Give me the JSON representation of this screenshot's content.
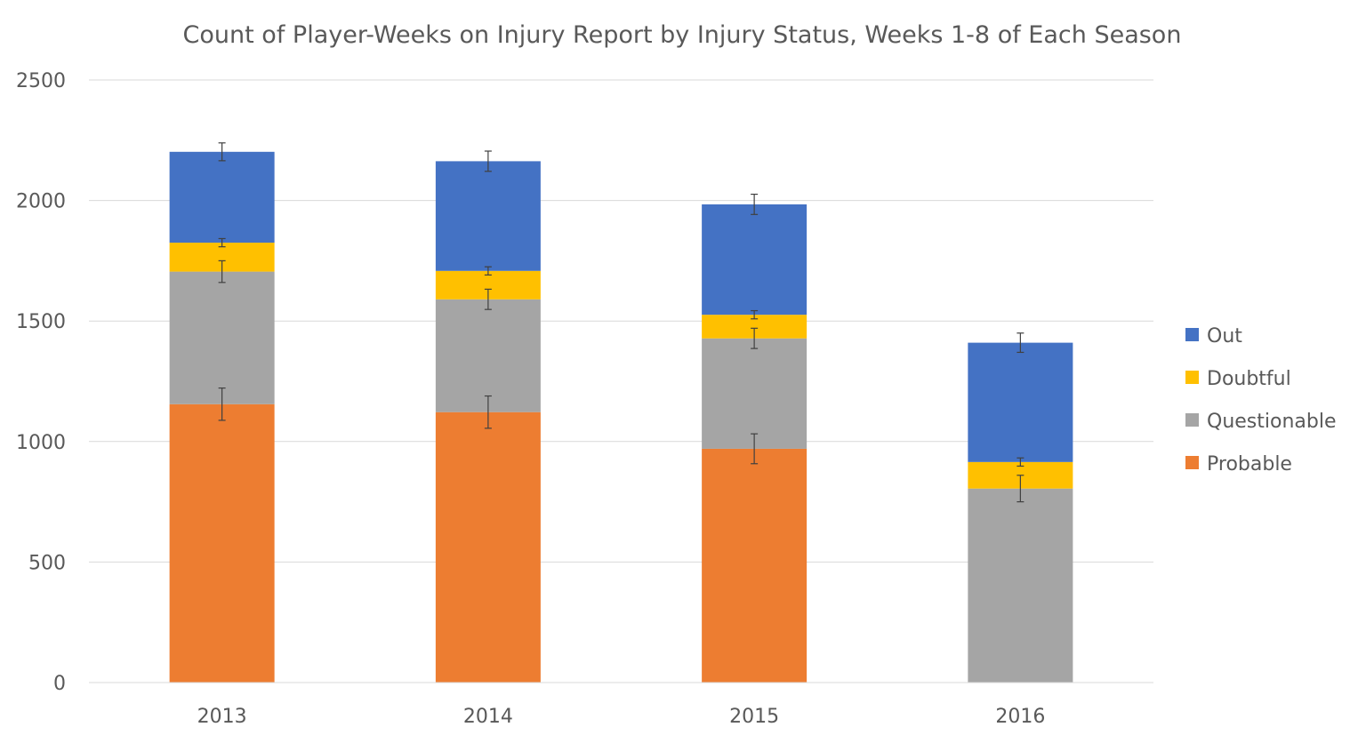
{
  "chart_data": {
    "type": "bar",
    "stacked": true,
    "title": "Count of Player-Weeks on Injury Report by Injury Status, Weeks 1-8 of Each Season",
    "xlabel": "",
    "ylabel": "",
    "categories": [
      "2013",
      "2014",
      "2015",
      "2016"
    ],
    "ylim": [
      0,
      2500
    ],
    "yticks": [
      0,
      500,
      1000,
      1500,
      2000,
      2500
    ],
    "grid": true,
    "legend_position": "right",
    "series": [
      {
        "name": "Probable",
        "color": "#ED7D31",
        "values": [
          1155,
          1122,
          970,
          0
        ],
        "error": [
          67,
          67,
          62,
          0
        ]
      },
      {
        "name": "Questionable",
        "color": "#A5A5A5",
        "values": [
          550,
          468,
          458,
          805
        ],
        "error": [
          45,
          42,
          42,
          55
        ]
      },
      {
        "name": "Doubtful",
        "color": "#FFC000",
        "values": [
          120,
          118,
          98,
          110
        ],
        "error": [
          17,
          17,
          17,
          17
        ]
      },
      {
        "name": "Out",
        "color": "#4472C4",
        "values": [
          377,
          455,
          458,
          495
        ],
        "error": [
          37,
          42,
          42,
          40
        ]
      }
    ],
    "legend_order": [
      "Out",
      "Doubtful",
      "Questionable",
      "Probable"
    ],
    "error_bar_color": "#404040",
    "gridline_color": "#D9D9D9",
    "axis_line_color": "#D9D9D9"
  }
}
